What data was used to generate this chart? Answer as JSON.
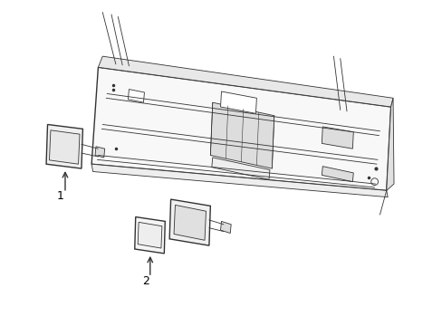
{
  "title": "",
  "background_color": "#ffffff",
  "line_color": "#333333",
  "label_color": "#000000",
  "fig_width": 4.89,
  "fig_height": 3.6,
  "dpi": 100
}
